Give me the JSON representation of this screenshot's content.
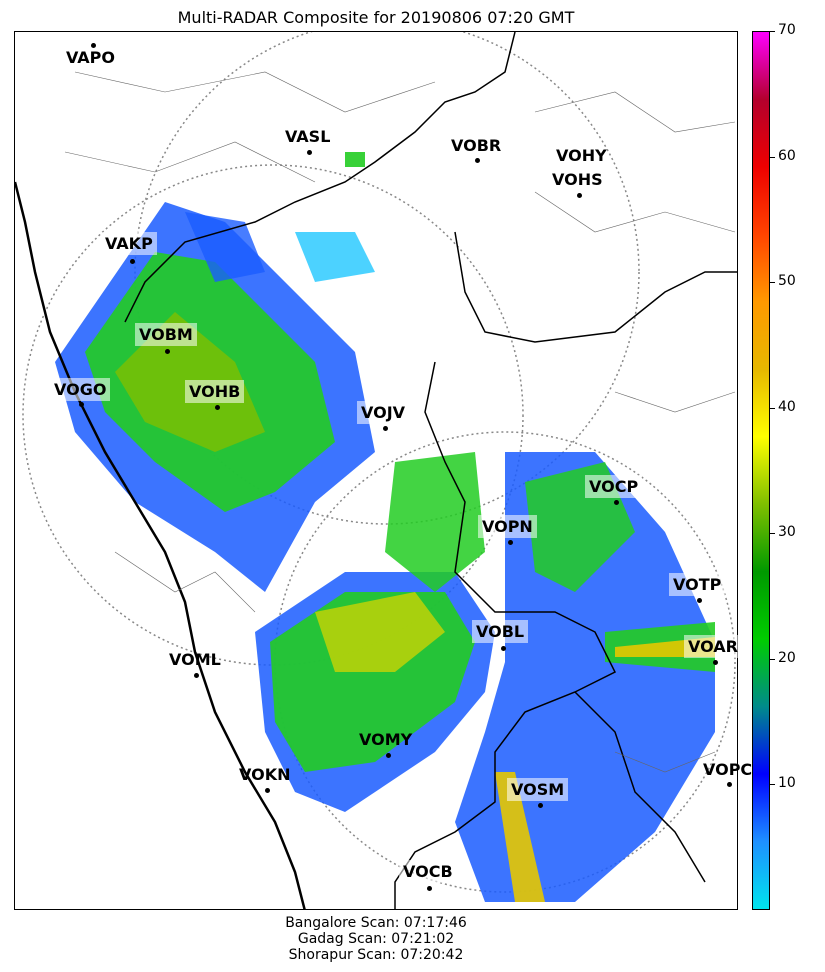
{
  "title": "Multi-RADAR Composite for 20190806 07:20 GMT",
  "stations": {
    "VAPO": "VAPO",
    "VASL": "VASL",
    "VOBR": "VOBR",
    "VOHY": "VOHY",
    "VOHS": "VOHS",
    "VAKP": "VAKP",
    "VOBM": "VOBM",
    "VOGO": "VOGO",
    "VOHB": "VOHB",
    "VOJV": "VOJV",
    "VOCP": "VOCP",
    "VOPN": "VOPN",
    "VOTP": "VOTP",
    "VOBL": "VOBL",
    "VOAR": "VOAR",
    "VOML": "VOML",
    "VOMY": "VOMY",
    "VOKN": "VOKN",
    "VOSM": "VOSM",
    "VOPC": "VOPC",
    "VOCB": "VOCB"
  },
  "colorbar": {
    "ticks": [
      "10",
      "20",
      "30",
      "40",
      "50",
      "60",
      "70"
    ],
    "min": 0,
    "max": 70,
    "colors": [
      "#00e5ee",
      "#1e90ff",
      "#0000ff",
      "#008b8b",
      "#00cc00",
      "#009900",
      "#7fbf00",
      "#ffff00",
      "#e6b800",
      "#ff9900",
      "#ff4400",
      "#ee0000",
      "#b3002d",
      "#ff00ff"
    ]
  },
  "scans": {
    "bangalore": "Bangalore Scan: 07:17:46",
    "gadag": "Gadag Scan: 07:21:02",
    "shorapur": "Shorapur Scan: 07:20:42"
  }
}
